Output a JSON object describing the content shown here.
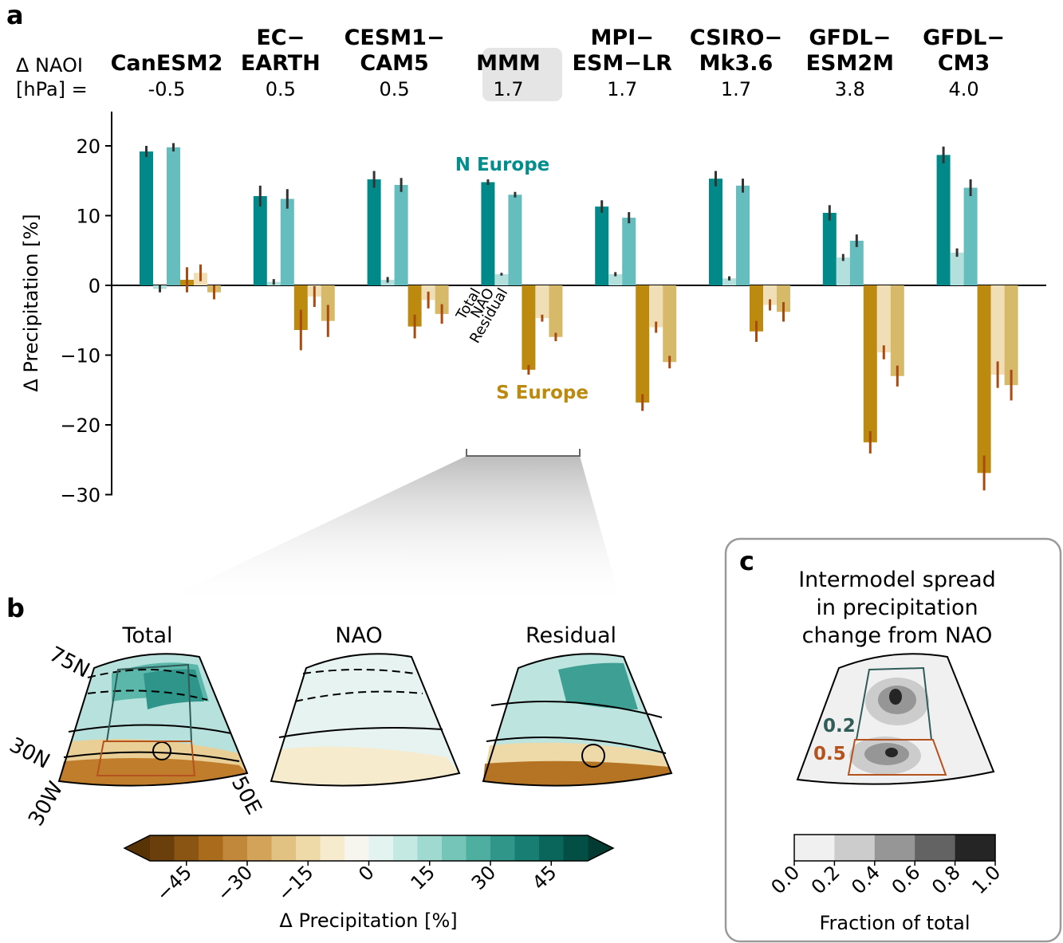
{
  "panel_labels": {
    "a": "a",
    "b": "b",
    "c": "c"
  },
  "chart_data": {
    "type": "bar",
    "ylabel": "Δ Precipitation [%]",
    "ylim": [
      -30,
      25
    ],
    "yticks": [
      20,
      10,
      0,
      -10,
      -20,
      -30
    ],
    "ytick_labels": [
      "20",
      "10",
      "0",
      "−10",
      "−20",
      "−30"
    ],
    "naoi_label_1": "Δ NAOI",
    "naoi_label_2": "[hPa] =",
    "models": [
      {
        "name": [
          "",
          "CanESM2"
        ],
        "naoi": "-0.5",
        "north": [
          19.2,
          -0.5,
          19.8
        ],
        "north_err": [
          0.8,
          0.5,
          0.6
        ],
        "south": [
          0.8,
          1.8,
          -1.0
        ],
        "south_err": [
          1.8,
          1.2,
          1.0
        ]
      },
      {
        "name": [
          "EC−",
          "EARTH"
        ],
        "naoi": "0.5",
        "north": [
          12.8,
          0.5,
          12.4
        ],
        "north_err": [
          1.5,
          0.4,
          1.4
        ],
        "south": [
          -6.4,
          -1.6,
          -5.1
        ],
        "south_err": [
          2.9,
          1.5,
          2.3
        ]
      },
      {
        "name": [
          "CESM1−",
          "CAM5"
        ],
        "naoi": "0.5",
        "north": [
          15.2,
          0.8,
          14.4
        ],
        "north_err": [
          1.2,
          0.4,
          1.0
        ],
        "south": [
          -5.9,
          -2.1,
          -4.1
        ],
        "south_err": [
          1.7,
          1.2,
          1.4
        ]
      },
      {
        "name": [
          "",
          "MMM"
        ],
        "naoi": "1.7",
        "north": [
          14.8,
          1.6,
          13.0
        ],
        "north_err": [
          0.4,
          0.2,
          0.4
        ],
        "south": [
          -12.1,
          -4.7,
          -7.4
        ],
        "south_err": [
          0.7,
          0.5,
          0.6
        ]
      },
      {
        "name": [
          "MPI−",
          "ESM−LR"
        ],
        "naoi": "1.7",
        "north": [
          11.3,
          1.6,
          9.7
        ],
        "north_err": [
          0.9,
          0.3,
          0.8
        ],
        "south": [
          -16.8,
          -6.0,
          -11.0
        ],
        "south_err": [
          1.2,
          0.8,
          0.9
        ]
      },
      {
        "name": [
          "CSIRO−",
          "Mk3.6"
        ],
        "naoi": "1.7",
        "north": [
          15.3,
          1.0,
          14.3
        ],
        "north_err": [
          1.1,
          0.3,
          1.0
        ],
        "south": [
          -6.6,
          -2.8,
          -3.8
        ],
        "south_err": [
          1.5,
          0.8,
          1.4
        ]
      },
      {
        "name": [
          "GFDL−",
          "ESM2M"
        ],
        "naoi": "3.8",
        "north": [
          10.4,
          4.0,
          6.4
        ],
        "north_err": [
          1.1,
          0.5,
          0.9
        ],
        "south": [
          -22.5,
          -9.6,
          -13.0
        ],
        "south_err": [
          1.6,
          1.0,
          1.5
        ]
      },
      {
        "name": [
          "GFDL−",
          "CM3"
        ],
        "naoi": "4.0",
        "north": [
          18.7,
          4.7,
          14.0
        ],
        "north_err": [
          1.2,
          0.6,
          1.2
        ],
        "south": [
          -26.9,
          -12.8,
          -14.3
        ],
        "south_err": [
          2.5,
          1.9,
          2.2
        ]
      }
    ],
    "annotations": {
      "north": "N Europe",
      "south": "S Europe",
      "bar_labels": [
        "Total",
        "NAO",
        "Residual"
      ]
    },
    "colors": {
      "north": [
        "#01898a",
        "#b3dfdc",
        "#66bdbd"
      ],
      "south": [
        "#bb8a0f",
        "#f0dfb6",
        "#d7b96a"
      ],
      "north_err": "#333333",
      "south_err": "#a94a10"
    }
  },
  "panel_b": {
    "map_titles": [
      "Total",
      "NAO",
      "Residual"
    ],
    "lat_labels": [
      "75N",
      "30N"
    ],
    "lon_labels": [
      "30W",
      "50E"
    ],
    "colorbar": {
      "label": "Δ  Precipitation [%]",
      "ticks": [
        "−45",
        "−30",
        "−15",
        "0",
        "15",
        "30",
        "45"
      ],
      "colors": [
        "#6b3f0b",
        "#8a5412",
        "#a96c1c",
        "#c1873a",
        "#d3a35a",
        "#e2c283",
        "#eed9a9",
        "#f6ebcd",
        "#f6f6ee",
        "#e3f3f0",
        "#c4e8e2",
        "#9fd9d0",
        "#75c5b8",
        "#4eaea0",
        "#2f9689",
        "#187d72",
        "#0a665b",
        "#044f45"
      ],
      "end_colors": [
        "#573306",
        "#033b33"
      ]
    }
  },
  "panel_c": {
    "title_lines": [
      "Intermodel spread",
      "in precipitation",
      "change from NAO"
    ],
    "north_value": "0.2",
    "south_value": "0.5",
    "colorbar": {
      "label": "Fraction of total",
      "ticks": [
        "0.0",
        "0.2",
        "0.4",
        "0.6",
        "0.8",
        "1.0"
      ],
      "colors": [
        "#f0f0f0",
        "#cccccc",
        "#969696",
        "#636363",
        "#252525"
      ]
    }
  }
}
